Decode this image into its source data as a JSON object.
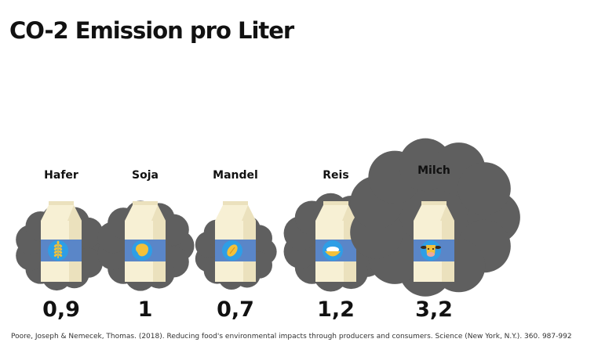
{
  "title": "CO-2 Emission pro Liter",
  "source": "Poore, Joseph & Nemecek, Thomas. (2018). Reducing food's environmental impacts through producers and consumers. Science (New York, N.Y.). 360. 987-992",
  "colors": {
    "cloud": "#5f5f5f",
    "carton": "#f7f0d4",
    "carton_shade": "#ebe1bd",
    "band": "#5a86c8",
    "icon_circle": "#2e9ee6",
    "icon_fill": "#f3c13a"
  },
  "chart_data": {
    "type": "pictogram",
    "categories": [
      "Hafer",
      "Soja",
      "Mandel",
      "Reis",
      "Milch"
    ],
    "values": [
      0.9,
      1,
      0.7,
      1.2,
      3.2
    ],
    "value_labels": [
      "0,9",
      "1",
      "0,7",
      "1,2",
      "3,2"
    ],
    "icons": [
      "wheat-icon",
      "soybean-icon",
      "almond-icon",
      "rice-bowl-icon",
      "cow-icon"
    ],
    "title": "CO-2 Emission pro Liter"
  }
}
